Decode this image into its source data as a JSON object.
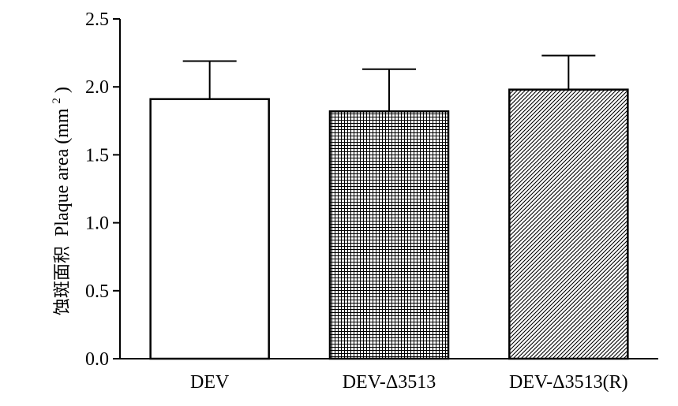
{
  "chart_data": {
    "type": "bar",
    "categories": [
      "DEV",
      "DEV-Δ3513",
      "DEV-Δ3513(R)"
    ],
    "values": [
      1.91,
      1.82,
      1.98
    ],
    "error_bars": [
      0.28,
      0.31,
      0.25
    ],
    "fills": [
      "none",
      "crosshatch",
      "diagonal-hatch"
    ],
    "ylabel": {
      "chinese": "蚀斑面积",
      "english": "Plaque area (mm",
      "superscript": "2",
      "close": ")"
    },
    "ylim": [
      0.0,
      2.5
    ],
    "yticks": [
      0.0,
      0.5,
      1.0,
      1.5,
      2.0,
      2.5
    ],
    "ytick_labels": [
      "0.0",
      "0.5",
      "1.0",
      "1.5",
      "2.0",
      "2.5"
    ],
    "grid": false,
    "legend": "none",
    "colors": {
      "bar_stroke": "#000000",
      "axis": "#000000",
      "bar_fill": "#ffffff"
    }
  }
}
